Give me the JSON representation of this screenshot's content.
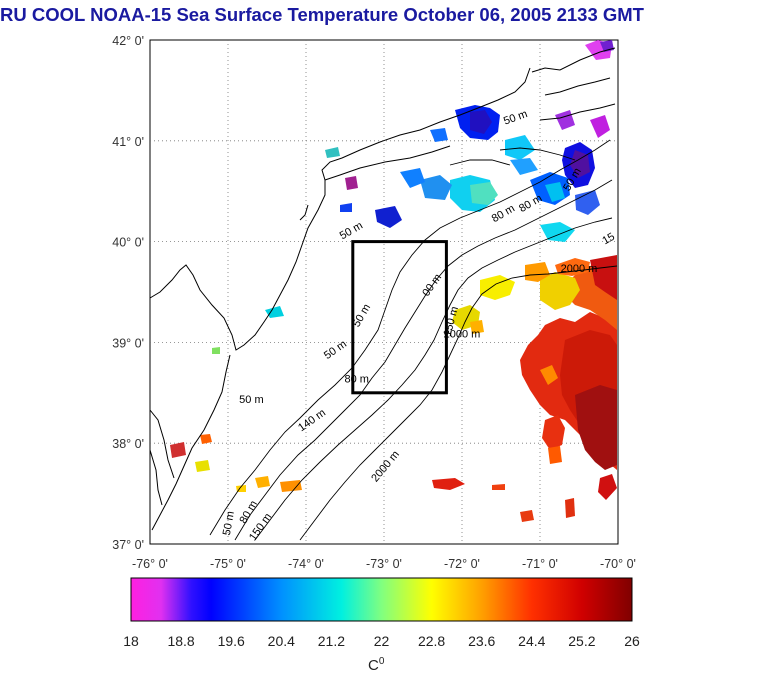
{
  "title": "RU COOL  NOAA-15 Sea Surface Temperature October 06, 2005 2133 GMT",
  "map": {
    "lat_labels": [
      "42° 0'",
      "41° 0'",
      "40° 0'",
      "39° 0'",
      "38° 0'",
      "37° 0'"
    ],
    "lon_labels": [
      "-76° 0'",
      "-75° 0'",
      "-74° 0'",
      "-73° 0'",
      "-72° 0'",
      "-71° 0'",
      "-70° 0'"
    ],
    "lat_range": [
      37,
      42
    ],
    "lon_range": [
      -76,
      -70
    ],
    "study_box": {
      "lon": [
        -73.4,
        -72.2
      ],
      "lat": [
        38.5,
        40.0
      ]
    },
    "contour_labels": [
      {
        "text": "50 m",
        "lon": -74.7,
        "lat": 38.4,
        "rot": 0
      },
      {
        "text": "50 m",
        "lon": -73.6,
        "lat": 38.9,
        "rot": -35
      },
      {
        "text": "50 m",
        "lon": -73.25,
        "lat": 39.25,
        "rot": -60
      },
      {
        "text": "80 m",
        "lon": -73.35,
        "lat": 38.6,
        "rot": 0
      },
      {
        "text": "140 m",
        "lon": -73.9,
        "lat": 38.2,
        "rot": -35
      },
      {
        "text": "2000 m",
        "lon": -72.95,
        "lat": 37.75,
        "rot": -50
      },
      {
        "text": "2000 m",
        "lon": -72.0,
        "lat": 39.05,
        "rot": 0
      },
      {
        "text": "2000 m",
        "lon": -70.5,
        "lat": 39.7,
        "rot": 0
      },
      {
        "text": "150 m",
        "lon": -72.1,
        "lat": 39.2,
        "rot": -75
      },
      {
        "text": "00 m",
        "lon": -72.35,
        "lat": 39.55,
        "rot": -55
      },
      {
        "text": "50 m",
        "lon": -73.4,
        "lat": 40.08,
        "rot": -30
      },
      {
        "text": "80 m",
        "lon": -71.45,
        "lat": 40.25,
        "rot": -30
      },
      {
        "text": "80 m",
        "lon": -71.1,
        "lat": 40.35,
        "rot": -30
      },
      {
        "text": "50 m",
        "lon": -70.55,
        "lat": 40.6,
        "rot": -60
      },
      {
        "text": "50 m",
        "lon": -71.3,
        "lat": 41.2,
        "rot": -20
      },
      {
        "text": "15",
        "lon": -70.1,
        "lat": 40.0,
        "rot": -30
      },
      {
        "text": "80 m",
        "lon": -74.7,
        "lat": 37.3,
        "rot": -60
      },
      {
        "text": "150 m",
        "lon": -74.55,
        "lat": 37.15,
        "rot": -55
      },
      {
        "text": "50 m",
        "lon": -74.95,
        "lat": 37.2,
        "rot": -80
      }
    ]
  },
  "colorbar": {
    "ticks": [
      "18",
      "18.8",
      "19.6",
      "20.4",
      "21.2",
      "22",
      "22.8",
      "23.6",
      "24.4",
      "25.2",
      "26"
    ],
    "min": 18,
    "max": 26,
    "colors": [
      "#ff20e0",
      "#0000ff",
      "#00e6ff",
      "#ffff00",
      "#ff0000",
      "#800000"
    ]
  }
}
